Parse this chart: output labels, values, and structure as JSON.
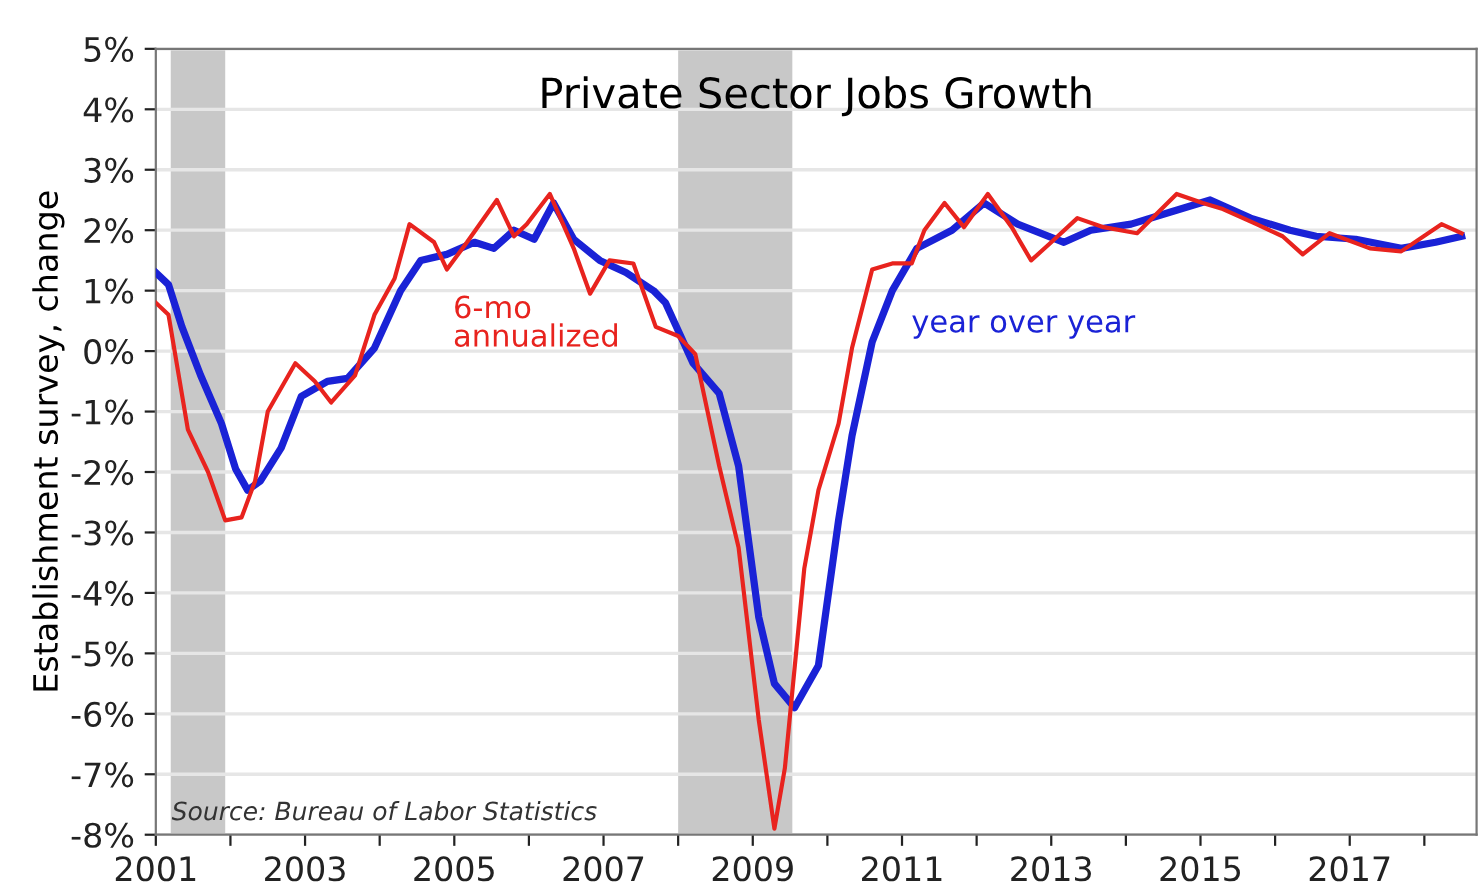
{
  "chart_data": {
    "type": "line",
    "title": "Private Sector Jobs Growth",
    "ylabel": "Establishment survey, change",
    "annotations": [
      "Source: Bureau of Labor Statistics"
    ],
    "xlim": [
      2001,
      2018.7
    ],
    "ylim": [
      -8,
      5
    ],
    "xticks": [
      2001,
      {
        "value": 2002,
        "label": null
      },
      2003,
      {
        "value": 2004,
        "label": null
      },
      2005,
      {
        "value": 2006,
        "label": null
      },
      2007,
      {
        "value": 2008,
        "label": null
      },
      2009,
      {
        "value": 2010,
        "label": null
      },
      2011,
      {
        "value": 2012,
        "label": null
      },
      2013,
      {
        "value": 2014,
        "label": null
      },
      2015,
      {
        "value": 2016,
        "label": null
      },
      2017,
      {
        "value": 2018,
        "label": null
      }
    ],
    "yticks": [
      {
        "value": 5,
        "label": "5%"
      },
      {
        "value": 4,
        "label": "4%"
      },
      {
        "value": 3,
        "label": "3%"
      },
      {
        "value": 2,
        "label": "2%"
      },
      {
        "value": 1,
        "label": "1%"
      },
      {
        "value": 0,
        "label": "0%"
      },
      {
        "value": -1,
        "label": "-1%"
      },
      {
        "value": -2,
        "label": "-2%"
      },
      {
        "value": -3,
        "label": "-3%"
      },
      {
        "value": -4,
        "label": "-4%"
      },
      {
        "value": -5,
        "label": "-5%"
      },
      {
        "value": -6,
        "label": "-6%"
      },
      {
        "value": -7,
        "label": "-7%"
      },
      {
        "value": -8,
        "label": "-8%"
      }
    ],
    "grid": "y",
    "bands": [
      {
        "axis": "x",
        "from": 2001.2,
        "to": 2001.93,
        "color": "#c8c8c8"
      },
      {
        "axis": "x",
        "from": 2008.0,
        "to": 2009.53,
        "color": "#c8c8c8"
      }
    ],
    "series": [
      {
        "name": "6-mo annualized",
        "color": "#e8231e",
        "x": [
          2001.0,
          2001.17,
          2001.43,
          2001.7,
          2001.93,
          2002.15,
          2002.33,
          2002.5,
          2002.87,
          2003.13,
          2003.35,
          2003.67,
          2003.93,
          2004.2,
          2004.4,
          2004.73,
          2004.9,
          2005.17,
          2005.57,
          2005.8,
          2005.97,
          2006.28,
          2006.6,
          2006.82,
          2007.08,
          2007.4,
          2007.7,
          2008.0,
          2008.23,
          2008.55,
          2008.81,
          2009.08,
          2009.29,
          2009.43,
          2009.69,
          2009.88,
          2010.15,
          2010.33,
          2010.6,
          2010.87,
          2011.13,
          2011.3,
          2011.57,
          2011.83,
          2012.15,
          2012.47,
          2012.73,
          2013.0,
          2013.35,
          2013.7,
          2014.15,
          2014.68,
          2015.03,
          2015.3,
          2015.75,
          2016.1,
          2016.37,
          2016.73,
          2017.27,
          2017.69,
          2018.23,
          2018.5
        ],
        "values": [
          0.8,
          0.6,
          -1.3,
          -2.0,
          -2.8,
          -2.75,
          -2.15,
          -1.0,
          -0.2,
          -0.5,
          -0.85,
          -0.4,
          0.6,
          1.2,
          2.1,
          1.8,
          1.35,
          1.8,
          2.5,
          1.9,
          2.1,
          2.6,
          1.7,
          0.95,
          1.5,
          1.45,
          0.4,
          0.25,
          -0.05,
          -1.9,
          -3.25,
          -6.1,
          -7.9,
          -6.9,
          -3.6,
          -2.3,
          -1.2,
          0.05,
          1.35,
          1.45,
          1.45,
          2.0,
          2.45,
          2.05,
          2.6,
          2.05,
          1.5,
          1.8,
          2.2,
          2.05,
          1.95,
          2.6,
          2.45,
          2.35,
          2.1,
          1.9,
          1.6,
          1.95,
          1.7,
          1.65,
          2.1,
          1.95
        ]
      },
      {
        "name": "year over year",
        "color": "#1a22d6",
        "x": [
          2001.0,
          2001.17,
          2001.35,
          2001.6,
          2001.88,
          2002.07,
          2002.23,
          2002.4,
          2002.68,
          2002.95,
          2003.3,
          2003.57,
          2003.93,
          2004.28,
          2004.55,
          2004.9,
          2005.27,
          2005.53,
          2005.8,
          2006.07,
          2006.33,
          2006.6,
          2006.95,
          2007.3,
          2007.67,
          2007.83,
          2008.2,
          2008.55,
          2008.81,
          2009.08,
          2009.29,
          2009.56,
          2009.88,
          2010.15,
          2010.33,
          2010.6,
          2010.87,
          2011.2,
          2011.67,
          2012.1,
          2012.55,
          2013.17,
          2013.53,
          2014.07,
          2014.6,
          2015.13,
          2015.67,
          2016.2,
          2016.55,
          2017.08,
          2017.69,
          2018.15,
          2018.5
        ],
        "values": [
          1.3,
          1.1,
          0.4,
          -0.4,
          -1.2,
          -1.95,
          -2.3,
          -2.15,
          -1.6,
          -0.75,
          -0.5,
          -0.45,
          0.05,
          1.0,
          1.5,
          1.6,
          1.8,
          1.7,
          2.0,
          1.85,
          2.45,
          1.85,
          1.5,
          1.3,
          1.0,
          0.8,
          -0.2,
          -0.7,
          -1.9,
          -4.4,
          -5.5,
          -5.9,
          -5.2,
          -2.8,
          -1.4,
          0.15,
          1.0,
          1.7,
          2.0,
          2.45,
          2.1,
          1.8,
          2.0,
          2.1,
          2.3,
          2.5,
          2.2,
          2.0,
          1.9,
          1.85,
          1.7,
          1.8,
          1.9
        ]
      }
    ]
  }
}
